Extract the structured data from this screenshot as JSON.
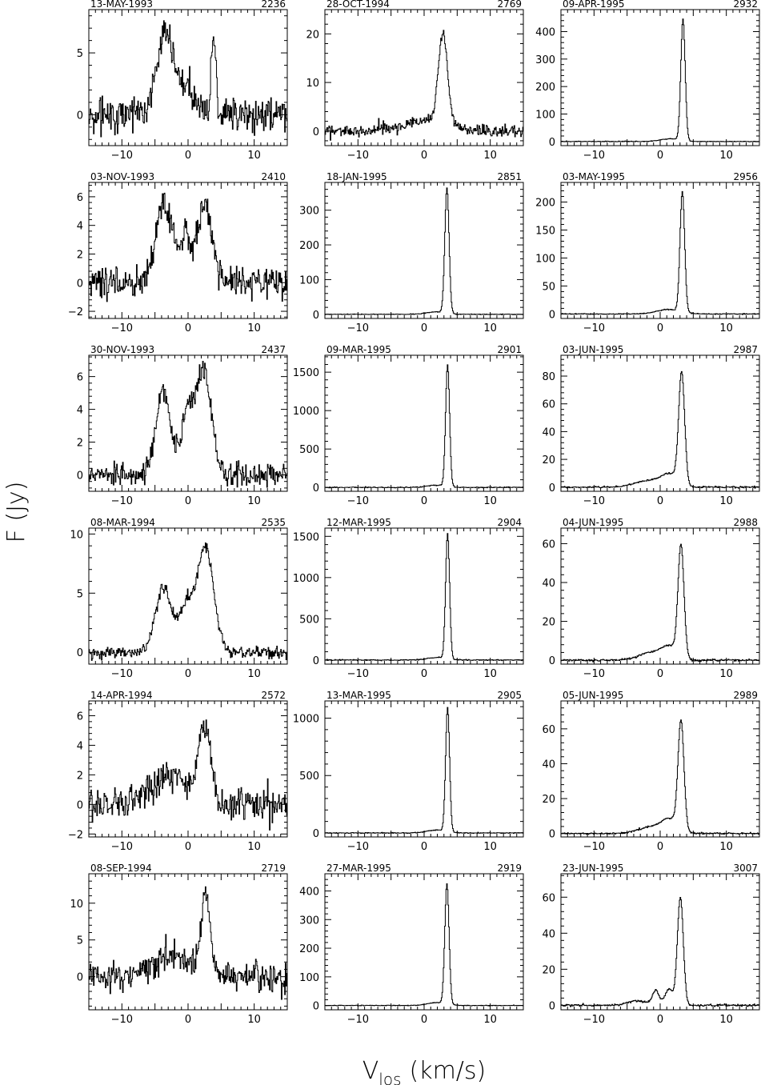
{
  "figure": {
    "ylabel": "F (Jy)",
    "xlabel_main": "V",
    "xlabel_sub": "los",
    "xlabel_unit": "(km/s)"
  },
  "chart_data": [
    {
      "type": "line",
      "date": "13-MAY-1993",
      "id": "2236",
      "xlim": [
        -15,
        15
      ],
      "ylim": [
        -2.5,
        8.5
      ],
      "yticks": [
        0,
        5
      ],
      "xticks": [
        -10,
        0,
        10
      ],
      "noise": 0.7,
      "baseline": 0,
      "components": [
        {
          "amp": 6.5,
          "center": -3.5,
          "width": 1.3
        },
        {
          "amp": 2.0,
          "center": 0,
          "width": 1.4
        },
        {
          "amp": 6.5,
          "center": 3.8,
          "width": 0.35
        }
      ]
    },
    {
      "type": "line",
      "date": "28-OCT-1994",
      "id": "2769",
      "xlim": [
        -15,
        15
      ],
      "ylim": [
        -3,
        25
      ],
      "yticks": [
        0,
        10,
        20
      ],
      "xticks": [
        -10,
        0,
        10
      ],
      "noise": 0.6,
      "baseline": 0,
      "components": [
        {
          "amp": 2.0,
          "center": 0,
          "width": 3.5
        },
        {
          "amp": 19,
          "center": 2.8,
          "width": 0.7
        }
      ]
    },
    {
      "type": "line",
      "date": "09-APR-1995",
      "id": "2932",
      "xlim": [
        -15,
        15
      ],
      "ylim": [
        -15,
        480
      ],
      "yticks": [
        0,
        100,
        200,
        300,
        400
      ],
      "xticks": [
        -10,
        0,
        10
      ],
      "noise": 0.6,
      "baseline": 0,
      "components": [
        {
          "amp": 10,
          "center": 1.5,
          "width": 1.5
        },
        {
          "amp": 440,
          "center": 3.4,
          "width": 0.33
        }
      ]
    },
    {
      "type": "line",
      "date": "03-NOV-1993",
      "id": "2410",
      "xlim": [
        -15,
        15
      ],
      "ylim": [
        -2.5,
        7
      ],
      "yticks": [
        -2,
        0,
        2,
        4,
        6
      ],
      "xticks": [
        -10,
        0,
        10
      ],
      "noise": 0.55,
      "baseline": 0,
      "components": [
        {
          "amp": 5.5,
          "center": -3.7,
          "width": 1.2
        },
        {
          "amp": 2.8,
          "center": -0.5,
          "width": 1.0
        },
        {
          "amp": 5.5,
          "center": 2.5,
          "width": 1.1
        }
      ]
    },
    {
      "type": "line",
      "date": "18-JAN-1995",
      "id": "2851",
      "xlim": [
        -15,
        15
      ],
      "ylim": [
        -12,
        380
      ],
      "yticks": [
        0,
        100,
        200,
        300
      ],
      "xticks": [
        -10,
        0,
        10
      ],
      "noise": 0.5,
      "baseline": 0,
      "components": [
        {
          "amp": 7,
          "center": 1.8,
          "width": 1.4
        },
        {
          "amp": 360,
          "center": 3.4,
          "width": 0.32
        }
      ]
    },
    {
      "type": "line",
      "date": "03-MAY-1995",
      "id": "2956",
      "xlim": [
        -15,
        15
      ],
      "ylim": [
        -8,
        235
      ],
      "yticks": [
        0,
        50,
        100,
        150,
        200
      ],
      "xticks": [
        -10,
        0,
        10
      ],
      "noise": 0.4,
      "baseline": 0,
      "components": [
        {
          "amp": 8,
          "center": 1.2,
          "width": 1.8
        },
        {
          "amp": 215,
          "center": 3.3,
          "width": 0.35
        }
      ]
    },
    {
      "type": "line",
      "date": "30-NOV-1993",
      "id": "2437",
      "xlim": [
        -15,
        15
      ],
      "ylim": [
        -1,
        7.3
      ],
      "yticks": [
        0,
        2,
        4,
        6
      ],
      "xticks": [
        -10,
        0,
        10
      ],
      "noise": 0.35,
      "baseline": 0,
      "components": [
        {
          "amp": 5.2,
          "center": -3.8,
          "width": 1.1
        },
        {
          "amp": 3.4,
          "center": -0.2,
          "width": 0.9
        },
        {
          "amp": 6.4,
          "center": 2.3,
          "width": 1.2
        }
      ]
    },
    {
      "type": "line",
      "date": "09-MAR-1995",
      "id": "2901",
      "xlim": [
        -15,
        15
      ],
      "ylim": [
        -50,
        1720
      ],
      "yticks": [
        0,
        500,
        1000,
        1500
      ],
      "xticks": [
        -10,
        0,
        10
      ],
      "noise": 3,
      "baseline": 0,
      "components": [
        {
          "amp": 30,
          "center": 1.8,
          "width": 1.4
        },
        {
          "amp": 1580,
          "center": 3.5,
          "width": 0.3
        }
      ]
    },
    {
      "type": "line",
      "date": "03-JUN-1995",
      "id": "2987",
      "xlim": [
        -15,
        15
      ],
      "ylim": [
        -3,
        95
      ],
      "yticks": [
        0,
        20,
        40,
        60,
        80
      ],
      "xticks": [
        -10,
        0,
        10
      ],
      "noise": 0.3,
      "baseline": 0,
      "components": [
        {
          "amp": 5,
          "center": -1.5,
          "width": 2.2
        },
        {
          "amp": 8,
          "center": 1.5,
          "width": 1.2
        },
        {
          "amp": 80,
          "center": 3.2,
          "width": 0.45
        }
      ]
    },
    {
      "type": "line",
      "date": "08-MAR-1994",
      "id": "2535",
      "xlim": [
        -15,
        15
      ],
      "ylim": [
        -1,
        10.5
      ],
      "yticks": [
        0,
        5,
        10
      ],
      "xticks": [
        -10,
        0,
        10
      ],
      "noise": 0.25,
      "baseline": 0,
      "components": [
        {
          "amp": 5.5,
          "center": -3.8,
          "width": 1.2
        },
        {
          "amp": 3.5,
          "center": -0.5,
          "width": 1.0
        },
        {
          "amp": 9.0,
          "center": 2.5,
          "width": 1.3
        }
      ]
    },
    {
      "type": "line",
      "date": "12-MAR-1995",
      "id": "2904",
      "xlim": [
        -15,
        15
      ],
      "ylim": [
        -50,
        1600
      ],
      "yticks": [
        0,
        500,
        1000,
        1500
      ],
      "xticks": [
        -10,
        0,
        10
      ],
      "noise": 3,
      "baseline": 0,
      "components": [
        {
          "amp": 30,
          "center": 1.8,
          "width": 1.4
        },
        {
          "amp": 1520,
          "center": 3.5,
          "width": 0.3
        }
      ]
    },
    {
      "type": "line",
      "date": "04-JUN-1995",
      "id": "2988",
      "xlim": [
        -15,
        15
      ],
      "ylim": [
        -2,
        68
      ],
      "yticks": [
        0,
        20,
        40,
        60
      ],
      "xticks": [
        -10,
        0,
        10
      ],
      "noise": 0.25,
      "baseline": 0,
      "components": [
        {
          "amp": 4,
          "center": -1.2,
          "width": 2.0
        },
        {
          "amp": 6,
          "center": 1.5,
          "width": 1.2
        },
        {
          "amp": 57,
          "center": 3.1,
          "width": 0.45
        }
      ]
    },
    {
      "type": "line",
      "date": "14-APR-1994",
      "id": "2572",
      "xlim": [
        -15,
        15
      ],
      "ylim": [
        -2.2,
        7
      ],
      "yticks": [
        -2,
        0,
        2,
        4,
        6
      ],
      "xticks": [
        -10,
        0,
        10
      ],
      "noise": 0.55,
      "baseline": 0,
      "components": [
        {
          "amp": 1.8,
          "center": -2.5,
          "width": 3.0
        },
        {
          "amp": 5.0,
          "center": 2.4,
          "width": 0.9
        }
      ]
    },
    {
      "type": "line",
      "date": "13-MAR-1995",
      "id": "2905",
      "xlim": [
        -15,
        15
      ],
      "ylim": [
        -35,
        1150
      ],
      "yticks": [
        0,
        500,
        1000
      ],
      "xticks": [
        -10,
        0,
        10
      ],
      "noise": 2,
      "baseline": 0,
      "components": [
        {
          "amp": 25,
          "center": 1.8,
          "width": 1.4
        },
        {
          "amp": 1080,
          "center": 3.5,
          "width": 0.3
        }
      ]
    },
    {
      "type": "line",
      "date": "05-JUN-1995",
      "id": "2989",
      "xlim": [
        -15,
        15
      ],
      "ylim": [
        -2,
        76
      ],
      "yticks": [
        0,
        20,
        40,
        60
      ],
      "xticks": [
        -10,
        0,
        10
      ],
      "noise": 0.25,
      "baseline": 0,
      "components": [
        {
          "amp": 4,
          "center": -1.2,
          "width": 2.0
        },
        {
          "amp": 7,
          "center": 1.5,
          "width": 1.2
        },
        {
          "amp": 62,
          "center": 3.1,
          "width": 0.45
        }
      ]
    },
    {
      "type": "line",
      "date": "08-SEP-1994",
      "id": "2719",
      "xlim": [
        -15,
        15
      ],
      "ylim": [
        -4.5,
        14
      ],
      "yticks": [
        0,
        5,
        10
      ],
      "xticks": [
        -10,
        0,
        10
      ],
      "noise": 1.0,
      "baseline": 0,
      "components": [
        {
          "amp": 3.0,
          "center": -2.5,
          "width": 3.0
        },
        {
          "amp": 10.5,
          "center": 2.6,
          "width": 0.7
        }
      ]
    },
    {
      "type": "line",
      "date": "27-MAR-1995",
      "id": "2919",
      "xlim": [
        -15,
        15
      ],
      "ylim": [
        -15,
        460
      ],
      "yticks": [
        0,
        100,
        200,
        300,
        400
      ],
      "xticks": [
        -10,
        0,
        10
      ],
      "noise": 0.6,
      "baseline": 0,
      "components": [
        {
          "amp": 10,
          "center": 1.8,
          "width": 1.4
        },
        {
          "amp": 420,
          "center": 3.4,
          "width": 0.32
        }
      ]
    },
    {
      "type": "line",
      "date": "23-JUN-1995",
      "id": "3007",
      "xlim": [
        -15,
        15
      ],
      "ylim": [
        -2.5,
        73
      ],
      "yticks": [
        0,
        20,
        40,
        60
      ],
      "xticks": [
        -10,
        0,
        10
      ],
      "noise": 0.3,
      "baseline": 0,
      "components": [
        {
          "amp": 2.5,
          "center": -3.5,
          "width": 1.5
        },
        {
          "amp": 8,
          "center": -0.7,
          "width": 0.5
        },
        {
          "amp": 9,
          "center": 1.3,
          "width": 0.6
        },
        {
          "amp": 60,
          "center": 3.0,
          "width": 0.45
        }
      ]
    }
  ]
}
